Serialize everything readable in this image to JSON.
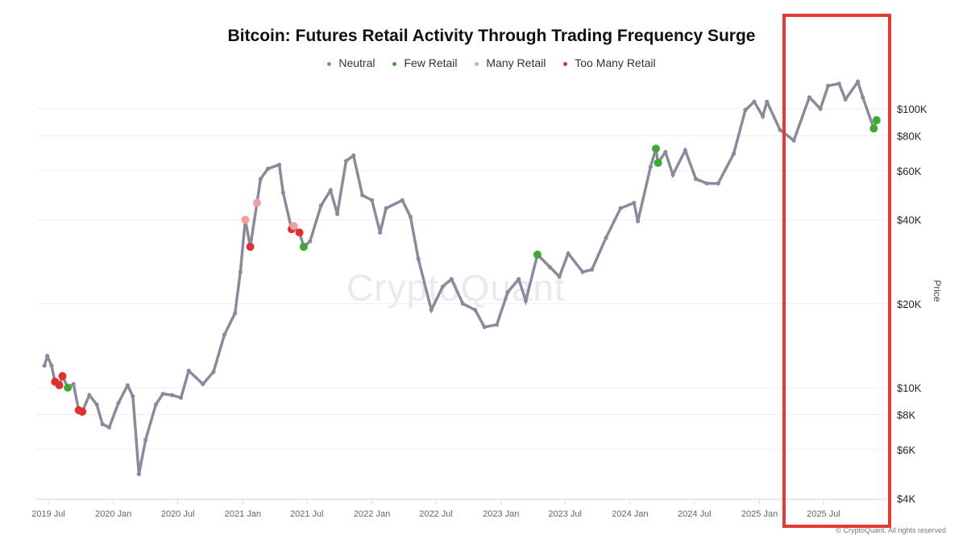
{
  "chart_data": {
    "type": "scatter",
    "title": "Bitcoin: Futures Retail Activity Through Trading Frequency Surge",
    "ylabel": "Price",
    "xlabel": "",
    "yscale": "log",
    "ylim": [
      4000,
      140000
    ],
    "xlim": [
      "2019-05-20",
      "2025-12-20"
    ],
    "grid": "horizontal",
    "legend_position": "top-center",
    "watermark": "CryptoQuant",
    "copyright": "© CryptoQuant. All rights reserved",
    "x_ticks": [
      {
        "date": "2019-07-01",
        "label": "2019 Jul"
      },
      {
        "date": "2020-01-01",
        "label": "2020 Jan"
      },
      {
        "date": "2020-07-01",
        "label": "2020 Jul"
      },
      {
        "date": "2021-01-01",
        "label": "2021 Jan"
      },
      {
        "date": "2021-07-01",
        "label": "2021 Jul"
      },
      {
        "date": "2022-01-01",
        "label": "2022 Jan"
      },
      {
        "date": "2022-07-01",
        "label": "2022 Jul"
      },
      {
        "date": "2023-01-01",
        "label": "2023 Jan"
      },
      {
        "date": "2023-07-01",
        "label": "2023 Jul"
      },
      {
        "date": "2024-01-01",
        "label": "2024 Jan"
      },
      {
        "date": "2024-07-01",
        "label": "2024 Jul"
      },
      {
        "date": "2025-01-01",
        "label": "2025 Jan"
      },
      {
        "date": "2025-07-01",
        "label": "2025 Jul"
      }
    ],
    "y_ticks": [
      {
        "value": 100000,
        "label": "$100K"
      },
      {
        "value": 80000,
        "label": "$80K"
      },
      {
        "value": 60000,
        "label": "$60K"
      },
      {
        "value": 40000,
        "label": "$40K"
      },
      {
        "value": 20000,
        "label": "$20K"
      },
      {
        "value": 10000,
        "label": "$10K"
      },
      {
        "value": 8000,
        "label": "$8K"
      },
      {
        "value": 6000,
        "label": "$6K"
      },
      {
        "value": 4000,
        "label": "$4K"
      }
    ],
    "series": [
      {
        "name": "Neutral",
        "color": "#8a8a9a"
      },
      {
        "name": "Few Retail",
        "color": "#3daa35"
      },
      {
        "name": "Many Retail",
        "color": "#f0a0a0"
      },
      {
        "name": "Too Many Retail",
        "color": "#e03030"
      }
    ],
    "points": [
      [
        "2019-06-20",
        12000,
        "Neutral"
      ],
      [
        "2019-06-28",
        13000,
        "Neutral"
      ],
      [
        "2019-07-10",
        12000,
        "Neutral"
      ],
      [
        "2019-07-20",
        10500,
        "Too Many Retail"
      ],
      [
        "2019-08-01",
        10200,
        "Too Many Retail"
      ],
      [
        "2019-08-10",
        11000,
        "Too Many Retail"
      ],
      [
        "2019-08-25",
        10000,
        "Few Retail"
      ],
      [
        "2019-09-10",
        10300,
        "Neutral"
      ],
      [
        "2019-09-25",
        8300,
        "Too Many Retail"
      ],
      [
        "2019-10-05",
        8200,
        "Too Many Retail"
      ],
      [
        "2019-10-25",
        9400,
        "Neutral"
      ],
      [
        "2019-11-15",
        8700,
        "Neutral"
      ],
      [
        "2019-12-01",
        7400,
        "Neutral"
      ],
      [
        "2019-12-20",
        7200,
        "Neutral"
      ],
      [
        "2020-01-15",
        8800,
        "Neutral"
      ],
      [
        "2020-02-10",
        10200,
        "Neutral"
      ],
      [
        "2020-02-25",
        9300,
        "Neutral"
      ],
      [
        "2020-03-13",
        4900,
        "Neutral"
      ],
      [
        "2020-04-01",
        6500,
        "Neutral"
      ],
      [
        "2020-04-30",
        8700,
        "Neutral"
      ],
      [
        "2020-05-20",
        9500,
        "Neutral"
      ],
      [
        "2020-06-15",
        9400,
        "Neutral"
      ],
      [
        "2020-07-10",
        9200,
        "Neutral"
      ],
      [
        "2020-08-01",
        11500,
        "Neutral"
      ],
      [
        "2020-09-10",
        10300,
        "Neutral"
      ],
      [
        "2020-10-10",
        11400,
        "Neutral"
      ],
      [
        "2020-11-10",
        15500,
        "Neutral"
      ],
      [
        "2020-12-10",
        18500,
        "Neutral"
      ],
      [
        "2020-12-25",
        26000,
        "Neutral"
      ],
      [
        "2021-01-08",
        40000,
        "Many Retail"
      ],
      [
        "2021-01-22",
        32000,
        "Too Many Retail"
      ],
      [
        "2021-02-10",
        46000,
        "Many Retail"
      ],
      [
        "2021-02-20",
        56000,
        "Neutral"
      ],
      [
        "2021-03-13",
        61000,
        "Neutral"
      ],
      [
        "2021-04-14",
        63000,
        "Neutral"
      ],
      [
        "2021-04-25",
        50000,
        "Neutral"
      ],
      [
        "2021-05-19",
        37000,
        "Too Many Retail"
      ],
      [
        "2021-05-25",
        38000,
        "Many Retail"
      ],
      [
        "2021-06-10",
        36000,
        "Too Many Retail"
      ],
      [
        "2021-06-22",
        32000,
        "Few Retail"
      ],
      [
        "2021-07-10",
        33500,
        "Neutral"
      ],
      [
        "2021-08-10",
        45000,
        "Neutral"
      ],
      [
        "2021-09-06",
        51000,
        "Neutral"
      ],
      [
        "2021-09-25",
        42000,
        "Neutral"
      ],
      [
        "2021-10-20",
        65000,
        "Neutral"
      ],
      [
        "2021-11-10",
        68000,
        "Neutral"
      ],
      [
        "2021-12-05",
        49000,
        "Neutral"
      ],
      [
        "2022-01-01",
        47000,
        "Neutral"
      ],
      [
        "2022-01-24",
        36000,
        "Neutral"
      ],
      [
        "2022-02-10",
        44000,
        "Neutral"
      ],
      [
        "2022-03-28",
        47000,
        "Neutral"
      ],
      [
        "2022-04-20",
        41000,
        "Neutral"
      ],
      [
        "2022-05-12",
        29000,
        "Neutral"
      ],
      [
        "2022-06-18",
        19000,
        "Neutral"
      ],
      [
        "2022-07-20",
        23000,
        "Neutral"
      ],
      [
        "2022-08-14",
        24500,
        "Neutral"
      ],
      [
        "2022-09-15",
        20000,
        "Neutral"
      ],
      [
        "2022-10-20",
        19000,
        "Neutral"
      ],
      [
        "2022-11-15",
        16500,
        "Neutral"
      ],
      [
        "2022-12-20",
        16800,
        "Neutral"
      ],
      [
        "2023-01-20",
        22000,
        "Neutral"
      ],
      [
        "2023-02-20",
        24500,
        "Neutral"
      ],
      [
        "2023-03-12",
        20500,
        "Neutral"
      ],
      [
        "2023-04-14",
        30000,
        "Few Retail"
      ],
      [
        "2023-05-20",
        27000,
        "Neutral"
      ],
      [
        "2023-06-15",
        25000,
        "Neutral"
      ],
      [
        "2023-07-10",
        30300,
        "Neutral"
      ],
      [
        "2023-08-20",
        26000,
        "Neutral"
      ],
      [
        "2023-09-15",
        26500,
        "Neutral"
      ],
      [
        "2023-10-25",
        34500,
        "Neutral"
      ],
      [
        "2023-12-05",
        44000,
        "Neutral"
      ],
      [
        "2024-01-12",
        46000,
        "Neutral"
      ],
      [
        "2024-01-23",
        39500,
        "Neutral"
      ],
      [
        "2024-02-28",
        62000,
        "Neutral"
      ],
      [
        "2024-03-14",
        72000,
        "Few Retail"
      ],
      [
        "2024-03-20",
        64000,
        "Few Retail"
      ],
      [
        "2024-04-10",
        70000,
        "Neutral"
      ],
      [
        "2024-05-01",
        58000,
        "Neutral"
      ],
      [
        "2024-06-05",
        71000,
        "Neutral"
      ],
      [
        "2024-07-05",
        56000,
        "Neutral"
      ],
      [
        "2024-08-05",
        54000,
        "Neutral"
      ],
      [
        "2024-09-06",
        54000,
        "Neutral"
      ],
      [
        "2024-10-20",
        69000,
        "Neutral"
      ],
      [
        "2024-11-22",
        99000,
        "Neutral"
      ],
      [
        "2024-12-17",
        106000,
        "Neutral"
      ],
      [
        "2025-01-10",
        94000,
        "Neutral"
      ],
      [
        "2025-01-22",
        106000,
        "Neutral"
      ],
      [
        "2025-02-28",
        84000,
        "Neutral"
      ],
      [
        "2025-04-08",
        77000,
        "Neutral"
      ],
      [
        "2025-05-22",
        110000,
        "Neutral"
      ],
      [
        "2025-06-22",
        100000,
        "Neutral"
      ],
      [
        "2025-07-14",
        121000,
        "Neutral"
      ],
      [
        "2025-08-14",
        123000,
        "Neutral"
      ],
      [
        "2025-09-01",
        108000,
        "Neutral"
      ],
      [
        "2025-10-06",
        125000,
        "Neutral"
      ],
      [
        "2025-10-20",
        110000,
        "Neutral"
      ],
      [
        "2025-11-20",
        85000,
        "Few Retail"
      ],
      [
        "2025-11-28",
        91000,
        "Few Retail"
      ]
    ],
    "highlight_box": {
      "color": "#e53935",
      "x_range": [
        "2025-01-20",
        "2025-12-15"
      ]
    }
  }
}
